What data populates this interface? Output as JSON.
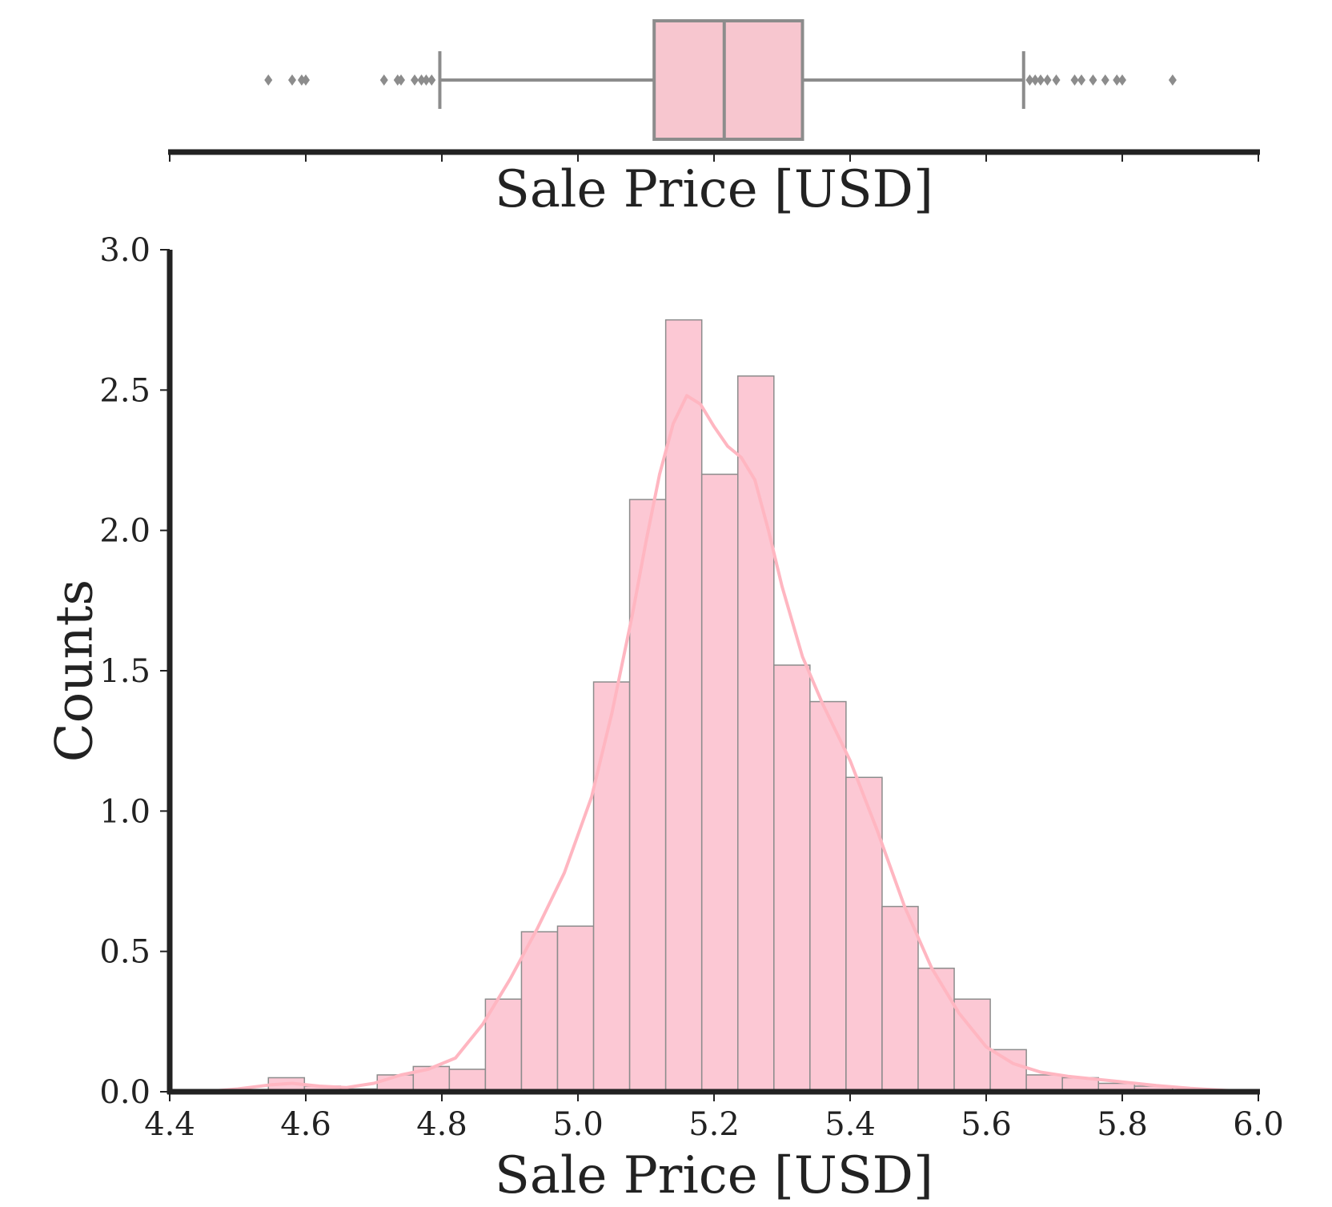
{
  "chart_data": [
    {
      "type": "box",
      "xlabel": "Sale Price [USD]",
      "xlim": [
        4.4,
        6.0
      ],
      "q1": 5.112,
      "median": 5.215,
      "q3": 5.33,
      "whisker_low": 4.797,
      "whisker_high": 5.655,
      "outliers": [
        4.545,
        4.58,
        4.594,
        4.6,
        4.715,
        4.735,
        4.74,
        4.76,
        4.77,
        4.777,
        4.785,
        5.664,
        5.672,
        5.68,
        5.69,
        5.703,
        5.73,
        5.74,
        5.757,
        5.775,
        5.792,
        5.8,
        5.874
      ],
      "color": "#f7c6cf",
      "edge_color": "#8c8c8c"
    },
    {
      "type": "bar",
      "subtype": "histogram-with-kde",
      "xlabel": "Sale Price [USD]",
      "ylabel": "Counts",
      "xlim": [
        4.4,
        6.0
      ],
      "ylim": [
        0,
        3.0
      ],
      "xticks": [
        "4.4",
        "4.6",
        "4.8",
        "5.0",
        "5.2",
        "5.4",
        "5.6",
        "5.8",
        "6.0"
      ],
      "yticks": [
        "0.0",
        "0.5",
        "1.0",
        "1.5",
        "2.0",
        "2.5",
        "3.0"
      ],
      "bins": [
        {
          "x0": 4.545,
          "x1": 4.598,
          "count": 0.05
        },
        {
          "x0": 4.598,
          "x1": 4.651,
          "count": 0.02
        },
        {
          "x0": 4.651,
          "x1": 4.705,
          "count": 0.01
        },
        {
          "x0": 4.705,
          "x1": 4.758,
          "count": 0.06
        },
        {
          "x0": 4.758,
          "x1": 4.811,
          "count": 0.09
        },
        {
          "x0": 4.811,
          "x1": 4.864,
          "count": 0.08
        },
        {
          "x0": 4.864,
          "x1": 4.917,
          "count": 0.33
        },
        {
          "x0": 4.917,
          "x1": 4.97,
          "count": 0.57
        },
        {
          "x0": 4.97,
          "x1": 5.023,
          "count": 0.59
        },
        {
          "x0": 5.023,
          "x1": 5.076,
          "count": 1.46
        },
        {
          "x0": 5.076,
          "x1": 5.129,
          "count": 2.11
        },
        {
          "x0": 5.129,
          "x1": 5.182,
          "count": 2.75
        },
        {
          "x0": 5.182,
          "x1": 5.235,
          "count": 2.2
        },
        {
          "x0": 5.235,
          "x1": 5.288,
          "count": 2.55
        },
        {
          "x0": 5.288,
          "x1": 5.341,
          "count": 1.52
        },
        {
          "x0": 5.341,
          "x1": 5.394,
          "count": 1.39
        },
        {
          "x0": 5.394,
          "x1": 5.447,
          "count": 1.12
        },
        {
          "x0": 5.447,
          "x1": 5.5,
          "count": 0.66
        },
        {
          "x0": 5.5,
          "x1": 5.553,
          "count": 0.44
        },
        {
          "x0": 5.553,
          "x1": 5.606,
          "count": 0.33
        },
        {
          "x0": 5.606,
          "x1": 5.659,
          "count": 0.15
        },
        {
          "x0": 5.659,
          "x1": 5.712,
          "count": 0.06
        },
        {
          "x0": 5.712,
          "x1": 5.765,
          "count": 0.05
        },
        {
          "x0": 5.765,
          "x1": 5.818,
          "count": 0.03
        },
        {
          "x0": 5.818,
          "x1": 5.874,
          "count": 0.02
        }
      ],
      "kde": {
        "x": [
          4.45,
          4.5,
          4.55,
          4.58,
          4.62,
          4.66,
          4.7,
          4.74,
          4.78,
          4.82,
          4.86,
          4.9,
          4.94,
          4.98,
          5.02,
          5.05,
          5.08,
          5.1,
          5.12,
          5.14,
          5.16,
          5.18,
          5.2,
          5.22,
          5.24,
          5.26,
          5.28,
          5.3,
          5.33,
          5.36,
          5.4,
          5.44,
          5.48,
          5.52,
          5.56,
          5.6,
          5.64,
          5.68,
          5.72,
          5.76,
          5.8,
          5.85,
          5.9,
          5.95,
          6.0
        ],
        "y": [
          0.0,
          0.01,
          0.025,
          0.03,
          0.02,
          0.015,
          0.03,
          0.06,
          0.08,
          0.12,
          0.24,
          0.4,
          0.58,
          0.78,
          1.05,
          1.35,
          1.7,
          1.96,
          2.2,
          2.38,
          2.48,
          2.45,
          2.37,
          2.3,
          2.26,
          2.18,
          2.0,
          1.8,
          1.55,
          1.38,
          1.18,
          0.93,
          0.66,
          0.44,
          0.28,
          0.16,
          0.1,
          0.07,
          0.055,
          0.045,
          0.035,
          0.022,
          0.012,
          0.005,
          0.0
        ]
      },
      "bar_color": "#fcc8d4",
      "bar_edge_color": "#8c8c8c",
      "kde_color": "#ffb6c1"
    }
  ]
}
